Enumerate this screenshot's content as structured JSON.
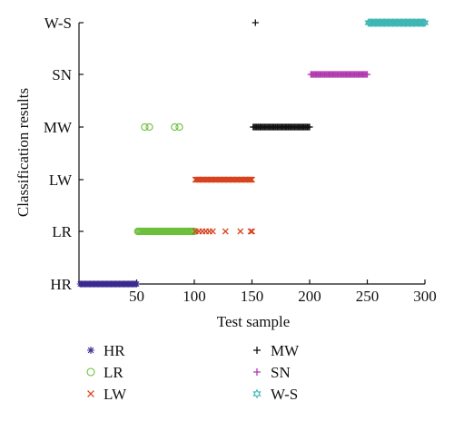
{
  "chart_data": {
    "type": "scatter",
    "xlabel": "Test sample",
    "ylabel": "Classification results",
    "xlim": [
      0,
      300
    ],
    "xticks": [
      50,
      100,
      150,
      200,
      250,
      300
    ],
    "categories": [
      "HR",
      "LR",
      "LW",
      "MW",
      "SN",
      "W-S"
    ],
    "legend_position": "bottom",
    "series": [
      {
        "name": "HR",
        "marker": "asterisk",
        "color": "#3b2a8f",
        "points": [
          {
            "x_from": 1,
            "x_to": 50,
            "step": 1,
            "y": "HR"
          }
        ]
      },
      {
        "name": "LR",
        "marker": "circle",
        "color": "#6cbf3b",
        "points": [
          {
            "x_from": 51,
            "x_to": 100,
            "step": 1,
            "y": "LR"
          },
          {
            "x": 57,
            "y": "MW"
          },
          {
            "x": 61,
            "y": "MW"
          },
          {
            "x": 83,
            "y": "MW"
          },
          {
            "x": 87,
            "y": "MW"
          }
        ]
      },
      {
        "name": "LW",
        "marker": "x",
        "color": "#d8431f",
        "points": [
          {
            "x_from": 101,
            "x_to": 150,
            "step": 1,
            "y": "LW"
          },
          {
            "x": 101,
            "y": "LR"
          },
          {
            "x": 104,
            "y": "LR"
          },
          {
            "x": 107,
            "y": "LR"
          },
          {
            "x": 110,
            "y": "LR"
          },
          {
            "x": 113,
            "y": "LR"
          },
          {
            "x": 116,
            "y": "LR"
          },
          {
            "x": 127,
            "y": "LR"
          },
          {
            "x": 140,
            "y": "LR"
          },
          {
            "x": 149,
            "y": "LR"
          },
          {
            "x": 150,
            "y": "LR"
          }
        ]
      },
      {
        "name": "MW",
        "marker": "plus",
        "color": "#111111",
        "points": [
          {
            "x_from": 151,
            "x_to": 200,
            "step": 1,
            "y": "MW"
          },
          {
            "x": 153,
            "y": "W-S"
          }
        ]
      },
      {
        "name": "SN",
        "marker": "plus",
        "color": "#b03ab0",
        "points": [
          {
            "x_from": 201,
            "x_to": 250,
            "step": 1,
            "y": "SN"
          }
        ]
      },
      {
        "name": "W-S",
        "marker": "star",
        "color": "#3fb6b6",
        "points": [
          {
            "x_from": 251,
            "x_to": 300,
            "step": 1,
            "y": "W-S"
          }
        ]
      }
    ]
  }
}
